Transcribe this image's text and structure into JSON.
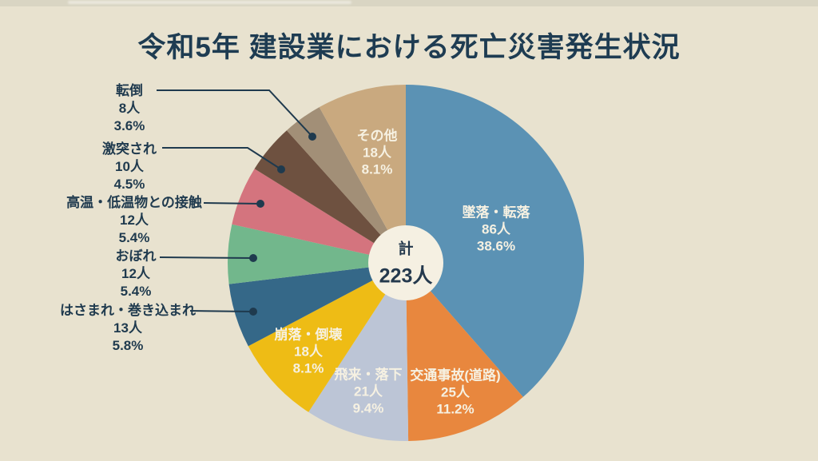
{
  "page": {
    "background_color": "#e8e2cf",
    "title_color": "#1e3c52",
    "callout_text_color": "#1f3a4e",
    "inside_label_color": "#f6f1e2",
    "hole_color": "#f5f0e2",
    "leader_line_color": "#1f3a4e"
  },
  "chart_data": {
    "type": "pie",
    "subtype": "donut",
    "title": "令和5年 建設業における死亡災害発生状況",
    "total": 223,
    "unit": "人",
    "total_label": "計",
    "total_value": "223人",
    "legend": "none (direct labels on slices and left-side callouts with leader lines)",
    "start_angle": "12 o'clock, clockwise",
    "slices": [
      {
        "name": "墜落・転落",
        "value": 86,
        "count_label": "86人",
        "percent_label": "38.6%",
        "color": "#5b92b4",
        "label_placement": "inside"
      },
      {
        "name": "交通事故(道路)",
        "value": 25,
        "count_label": "25人",
        "percent_label": "11.2%",
        "color": "#e8873e",
        "label_placement": "inside"
      },
      {
        "name": "飛来・落下",
        "value": 21,
        "count_label": "21人",
        "percent_label": "9.4%",
        "color": "#bcc5d6",
        "label_placement": "inside"
      },
      {
        "name": "崩落・倒壊",
        "value": 18,
        "count_label": "18人",
        "percent_label": "8.1%",
        "color": "#eebc15",
        "label_placement": "inside"
      },
      {
        "name": "はさまれ・巻き込まれ",
        "value": 13,
        "count_label": "13人",
        "percent_label": "5.8%",
        "color": "#356888",
        "label_placement": "outside"
      },
      {
        "name": "おぼれ",
        "value": 12,
        "count_label": "12人",
        "percent_label": "5.4%",
        "color": "#72b78c",
        "label_placement": "outside"
      },
      {
        "name": "高温・低温物との接触",
        "value": 12,
        "count_label": "12人",
        "percent_label": "5.4%",
        "color": "#d4747e",
        "label_placement": "outside"
      },
      {
        "name": "激突され",
        "value": 10,
        "count_label": "10人",
        "percent_label": "4.5%",
        "color": "#6e5140",
        "label_placement": "outside"
      },
      {
        "name": "転倒",
        "value": 8,
        "count_label": "8人",
        "percent_label": "3.6%",
        "color": "#a28f77",
        "label_placement": "outside"
      },
      {
        "name": "その他",
        "value": 18,
        "count_label": "18人",
        "percent_label": "8.1%",
        "color": "#c9a97f",
        "label_placement": "inside"
      }
    ]
  }
}
